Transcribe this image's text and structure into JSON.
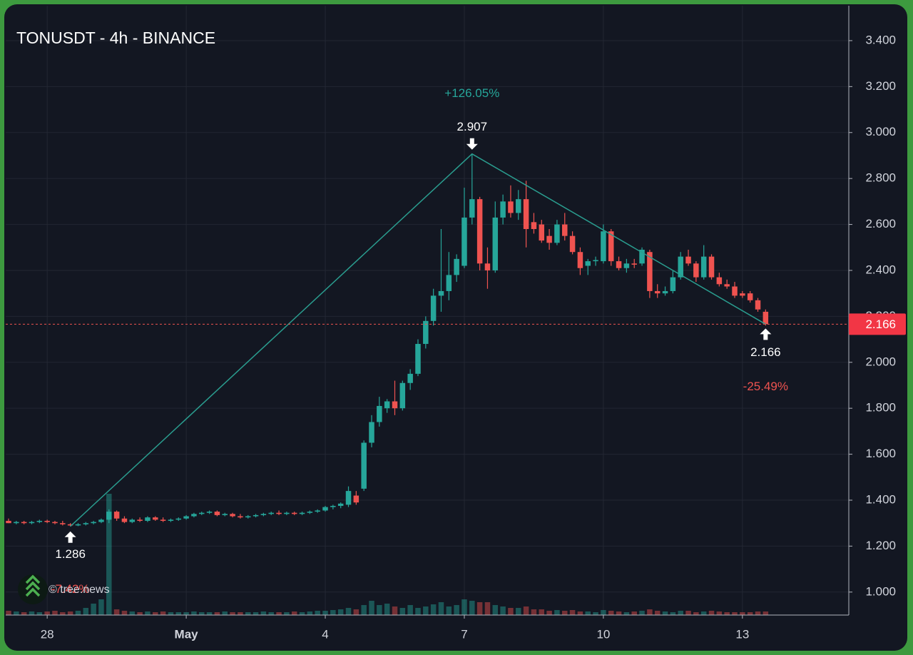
{
  "chart_data": {
    "type": "candlestick",
    "title": "TONUSDT - 4h - BINANCE",
    "watermark": "© tree.news",
    "categories": [
      null,
      null,
      null,
      null,
      null,
      "28",
      null,
      null,
      null,
      null,
      null,
      null,
      null,
      null,
      null,
      null,
      null,
      null,
      null,
      null,
      null,
      null,
      null,
      "May",
      null,
      null,
      null,
      null,
      null,
      null,
      null,
      null,
      null,
      null,
      null,
      null,
      null,
      null,
      null,
      null,
      null,
      "4",
      null,
      null,
      null,
      null,
      null,
      null,
      null,
      null,
      null,
      null,
      null,
      null,
      null,
      null,
      null,
      null,
      null,
      "7",
      null,
      null,
      null,
      null,
      null,
      null,
      null,
      null,
      null,
      null,
      null,
      null,
      null,
      null,
      null,
      null,
      null,
      "10",
      null,
      null,
      null,
      null,
      null,
      null,
      null,
      null,
      null,
      null,
      null,
      null,
      null,
      null,
      null,
      null,
      null,
      "13",
      null,
      null,
      null
    ],
    "open": [
      1.31,
      1.3,
      1.305,
      1.3,
      1.305,
      1.31,
      1.305,
      1.3,
      1.295,
      1.29,
      1.295,
      1.3,
      1.305,
      1.315,
      1.35,
      1.32,
      1.305,
      1.315,
      1.31,
      1.325,
      1.315,
      1.31,
      1.315,
      1.32,
      1.33,
      1.34,
      1.345,
      1.35,
      1.335,
      1.34,
      1.33,
      1.325,
      1.33,
      1.335,
      1.34,
      1.345,
      1.34,
      1.345,
      1.34,
      1.345,
      1.35,
      1.355,
      1.37,
      1.375,
      1.38,
      1.42,
      1.45,
      1.65,
      1.74,
      1.8,
      1.83,
      1.8,
      1.91,
      1.95,
      2.08,
      2.18,
      2.29,
      2.31,
      2.38,
      2.42,
      2.63,
      2.71,
      2.43,
      2.4,
      2.63,
      2.7,
      2.65,
      2.71,
      2.61,
      2.6,
      2.55,
      2.52,
      2.6,
      2.55,
      2.48,
      2.42,
      2.44,
      2.44,
      2.57,
      2.44,
      2.41,
      2.43,
      2.43,
      2.48,
      2.31,
      2.3,
      2.31,
      2.37,
      2.46,
      2.43,
      2.37,
      2.46,
      2.37,
      2.34,
      2.33,
      2.3,
      2.3,
      2.27,
      2.22
    ],
    "high": [
      1.32,
      1.31,
      1.31,
      1.31,
      1.315,
      1.315,
      1.31,
      1.31,
      1.3,
      1.3,
      1.305,
      1.31,
      1.32,
      1.36,
      1.355,
      1.33,
      1.32,
      1.325,
      1.33,
      1.33,
      1.325,
      1.32,
      1.325,
      1.335,
      1.345,
      1.35,
      1.355,
      1.355,
      1.345,
      1.345,
      1.34,
      1.335,
      1.34,
      1.345,
      1.35,
      1.355,
      1.35,
      1.35,
      1.35,
      1.355,
      1.36,
      1.375,
      1.38,
      1.39,
      1.46,
      1.44,
      1.66,
      1.77,
      1.85,
      1.84,
      1.92,
      1.92,
      1.97,
      2.1,
      2.2,
      2.32,
      2.58,
      2.48,
      2.47,
      2.76,
      2.907,
      2.72,
      2.5,
      2.7,
      2.73,
      2.77,
      2.75,
      2.79,
      2.65,
      2.62,
      2.58,
      2.62,
      2.65,
      2.57,
      2.5,
      2.45,
      2.46,
      2.6,
      2.58,
      2.46,
      2.45,
      2.45,
      2.5,
      2.49,
      2.34,
      2.33,
      2.4,
      2.48,
      2.49,
      2.44,
      2.51,
      2.47,
      2.39,
      2.36,
      2.35,
      2.31,
      2.31,
      2.28,
      2.23
    ],
    "low": [
      1.3,
      1.295,
      1.295,
      1.295,
      1.3,
      1.3,
      1.295,
      1.29,
      1.286,
      1.287,
      1.29,
      1.295,
      1.3,
      1.3,
      1.31,
      1.3,
      1.3,
      1.305,
      1.305,
      1.31,
      1.305,
      1.305,
      1.31,
      1.315,
      1.325,
      1.335,
      1.34,
      1.33,
      1.33,
      1.325,
      1.32,
      1.32,
      1.325,
      1.33,
      1.335,
      1.335,
      1.335,
      1.335,
      1.335,
      1.34,
      1.345,
      1.35,
      1.36,
      1.365,
      1.37,
      1.38,
      1.44,
      1.63,
      1.72,
      1.78,
      1.77,
      1.79,
      1.88,
      1.94,
      2.06,
      2.16,
      2.22,
      2.27,
      2.35,
      2.41,
      2.6,
      2.4,
      2.32,
      2.39,
      2.6,
      2.63,
      2.62,
      2.5,
      2.56,
      2.52,
      2.49,
      2.51,
      2.53,
      2.47,
      2.38,
      2.38,
      2.42,
      2.43,
      2.42,
      2.4,
      2.39,
      2.41,
      2.42,
      2.28,
      2.28,
      2.29,
      2.3,
      2.36,
      2.42,
      2.35,
      2.36,
      2.36,
      2.33,
      2.32,
      2.28,
      2.28,
      2.26,
      2.22,
      2.16
    ],
    "close": [
      1.3,
      1.305,
      1.3,
      1.305,
      1.31,
      1.305,
      1.3,
      1.295,
      1.29,
      1.295,
      1.3,
      1.305,
      1.315,
      1.35,
      1.32,
      1.305,
      1.315,
      1.31,
      1.325,
      1.315,
      1.31,
      1.315,
      1.32,
      1.33,
      1.34,
      1.345,
      1.35,
      1.335,
      1.34,
      1.33,
      1.325,
      1.33,
      1.335,
      1.34,
      1.345,
      1.34,
      1.345,
      1.34,
      1.345,
      1.35,
      1.355,
      1.37,
      1.375,
      1.385,
      1.44,
      1.39,
      1.65,
      1.74,
      1.81,
      1.83,
      1.8,
      1.91,
      1.95,
      2.08,
      2.18,
      2.29,
      2.31,
      2.38,
      2.45,
      2.63,
      2.71,
      2.43,
      2.4,
      2.63,
      2.7,
      2.65,
      2.71,
      2.58,
      2.58,
      2.53,
      2.52,
      2.6,
      2.55,
      2.48,
      2.41,
      2.44,
      2.445,
      2.57,
      2.44,
      2.41,
      2.43,
      2.425,
      2.49,
      2.31,
      2.3,
      2.31,
      2.37,
      2.46,
      2.43,
      2.37,
      2.46,
      2.37,
      2.34,
      2.33,
      2.29,
      2.29,
      2.27,
      2.23,
      2.166
    ],
    "volume": [
      6,
      5,
      4,
      5,
      4,
      5,
      6,
      4,
      5,
      6,
      10,
      16,
      22,
      170,
      8,
      6,
      5,
      4,
      5,
      4,
      5,
      4,
      4,
      4,
      5,
      4,
      4,
      4,
      5,
      4,
      4,
      4,
      4,
      5,
      4,
      4,
      4,
      5,
      4,
      5,
      6,
      6,
      7,
      8,
      10,
      8,
      14,
      20,
      14,
      16,
      12,
      10,
      14,
      10,
      12,
      15,
      18,
      12,
      14,
      22,
      20,
      18,
      18,
      14,
      12,
      10,
      10,
      12,
      8,
      8,
      6,
      7,
      6,
      7,
      5,
      5,
      4,
      7,
      6,
      5,
      4,
      5,
      6,
      8,
      6,
      5,
      4,
      6,
      6,
      4,
      5,
      6,
      5,
      4,
      4,
      4,
      4,
      5,
      5
    ],
    "up_color": "#26a69a",
    "down_color": "#ef5350",
    "ylim": [
      0.9,
      3.552
    ],
    "yticks": [
      {
        "value": 1.0,
        "label": "1.000"
      },
      {
        "value": 1.2,
        "label": "1.200"
      },
      {
        "value": 1.4,
        "label": "1.400"
      },
      {
        "value": 1.6,
        "label": "1.600"
      },
      {
        "value": 1.8,
        "label": "1.800"
      },
      {
        "value": 2.0,
        "label": "2.000"
      },
      {
        "value": 2.2,
        "label": "2.200"
      },
      {
        "value": 2.4,
        "label": "2.400"
      },
      {
        "value": 2.6,
        "label": "2.600"
      },
      {
        "value": 2.8,
        "label": "2.800"
      },
      {
        "value": 3.0,
        "label": "3.000"
      },
      {
        "value": 3.2,
        "label": "3.200"
      },
      {
        "value": 3.4,
        "label": "3.400"
      }
    ],
    "grid": true,
    "annotations": {
      "rise": "+126.05%",
      "fall": "-25.49%",
      "prior": "-7.42%"
    }
  }
}
